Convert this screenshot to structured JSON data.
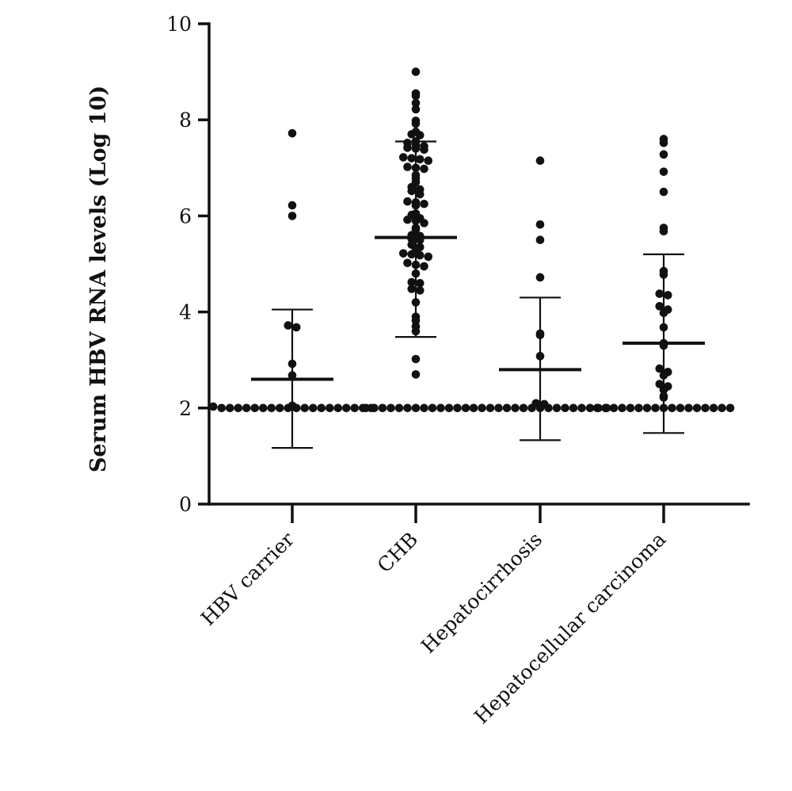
{
  "chart_data": {
    "type": "scatter",
    "title": "",
    "xlabel": "",
    "ylabel": "Serum HBV RNA levels (Log 10)",
    "ylim": [
      0,
      10
    ],
    "yticks": [
      0,
      2,
      4,
      6,
      8,
      10
    ],
    "grid": false,
    "legend": "none",
    "dot_color": "#111111",
    "categories": [
      "HBV carrier",
      "CHB",
      "Hepatocirrhosis",
      "Hepatocellular carcinoma"
    ],
    "series": [
      {
        "category": "HBV carrier",
        "mean": 2.6,
        "sd_upper": 4.05,
        "sd_lower": 1.17,
        "values": [
          7.72,
          6.22,
          6.0,
          3.72,
          3.68,
          2.92,
          2.68,
          2.05,
          2.03,
          2.0,
          2.0,
          2.0,
          2.0,
          2.0,
          2.0,
          2.0,
          2.0,
          2.0,
          2.0,
          2.0,
          2.0,
          2.0,
          2.0,
          2.0,
          2.0,
          2.0,
          2.0,
          2.0
        ]
      },
      {
        "category": "CHB",
        "mean": 5.55,
        "sd_upper": 7.55,
        "sd_lower": 3.48,
        "values": [
          9.0,
          8.55,
          8.5,
          8.35,
          8.22,
          7.98,
          7.92,
          7.75,
          7.7,
          7.68,
          7.55,
          7.52,
          7.48,
          7.45,
          7.42,
          7.4,
          7.38,
          7.22,
          7.2,
          7.18,
          7.15,
          7.02,
          7.0,
          6.98,
          6.85,
          6.78,
          6.7,
          6.6,
          6.55,
          6.52,
          6.45,
          6.3,
          6.28,
          6.25,
          6.22,
          6.05,
          6.02,
          5.95,
          5.92,
          5.9,
          5.85,
          5.75,
          5.72,
          5.6,
          5.58,
          5.52,
          5.5,
          5.4,
          5.35,
          5.3,
          5.22,
          5.2,
          5.18,
          5.15,
          5.02,
          4.98,
          4.95,
          4.8,
          4.62,
          4.6,
          4.48,
          4.45,
          4.2,
          3.9,
          3.82,
          3.7,
          3.6,
          3.02,
          2.7,
          2.0,
          2.0,
          2.0,
          2.0,
          2.0,
          2.0,
          2.0,
          2.0,
          2.0,
          2.0,
          2.0,
          2.0,
          2.0
        ]
      },
      {
        "category": "Hepatocirrhosis",
        "mean": 2.8,
        "sd_upper": 4.3,
        "sd_lower": 1.33,
        "values": [
          7.15,
          5.82,
          5.5,
          4.72,
          3.55,
          3.52,
          3.08,
          2.1,
          2.08,
          2.0,
          2.0,
          2.0,
          2.0,
          2.0,
          2.0,
          2.0,
          2.0,
          2.0,
          2.0,
          2.0,
          2.0,
          2.0,
          2.0,
          2.0,
          2.0,
          2.0
        ]
      },
      {
        "category": "Hepatocellular carcinoma",
        "mean": 3.35,
        "sd_upper": 5.2,
        "sd_lower": 1.48,
        "values": [
          7.6,
          7.52,
          7.28,
          6.92,
          6.5,
          5.75,
          5.68,
          4.85,
          4.78,
          4.38,
          4.35,
          4.12,
          4.05,
          3.98,
          3.68,
          3.35,
          3.3,
          2.82,
          2.75,
          2.68,
          2.5,
          2.45,
          2.38,
          2.25,
          2.22,
          2.0,
          2.0,
          2.0,
          2.0,
          2.0,
          2.0,
          2.0,
          2.0,
          2.0,
          2.0,
          2.0,
          2.0,
          2.0,
          2.0,
          2.0,
          2.0,
          2.0
        ]
      }
    ]
  }
}
